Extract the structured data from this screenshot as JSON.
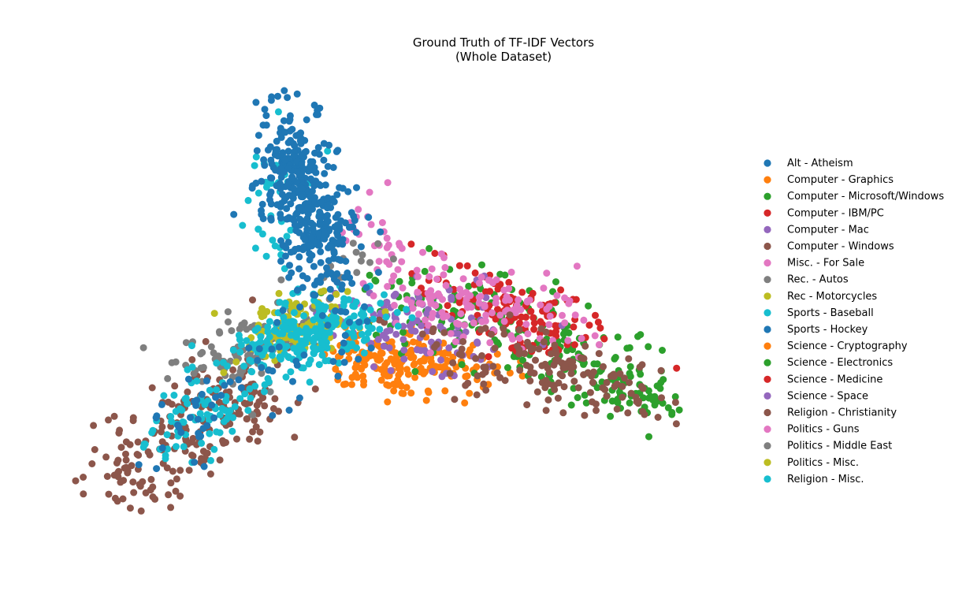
{
  "chart_data": {
    "type": "scatter",
    "title": [
      "Ground Truth of TF-IDF Vectors",
      "(Whole Dataset)"
    ],
    "axes_visible": false,
    "grid": false,
    "legend_position": "right",
    "series": [
      {
        "name": "Alt - Atheism",
        "color": "#1f77b4"
      },
      {
        "name": "Computer - Graphics",
        "color": "#ff7f0e"
      },
      {
        "name": "Computer - Microsoft/Windows",
        "color": "#2ca02c"
      },
      {
        "name": "Computer - IBM/PC",
        "color": "#d62728"
      },
      {
        "name": "Computer - Mac",
        "color": "#9467bd"
      },
      {
        "name": "Computer - Windows",
        "color": "#8c564b"
      },
      {
        "name": "Misc. - For Sale",
        "color": "#e377c2"
      },
      {
        "name": "Rec. - Autos",
        "color": "#7f7f7f"
      },
      {
        "name": "Rec - Motorcycles",
        "color": "#bcbd22"
      },
      {
        "name": "Sports - Baseball",
        "color": "#17becf"
      },
      {
        "name": "Sports - Hockey",
        "color": "#1f77b4"
      },
      {
        "name": "Science - Cryptography",
        "color": "#ff7f0e"
      },
      {
        "name": "Science - Electronics",
        "color": "#2ca02c"
      },
      {
        "name": "Science - Medicine",
        "color": "#d62728"
      },
      {
        "name": "Science - Space",
        "color": "#9467bd"
      },
      {
        "name": "Religion - Christianity",
        "color": "#8c564b"
      },
      {
        "name": "Politics - Guns",
        "color": "#e377c2"
      },
      {
        "name": "Politics - Middle East",
        "color": "#7f7f7f"
      },
      {
        "name": "Politics - Misc.",
        "color": "#bcbd22"
      },
      {
        "name": "Religion - Misc.",
        "color": "#17becf"
      }
    ]
  }
}
